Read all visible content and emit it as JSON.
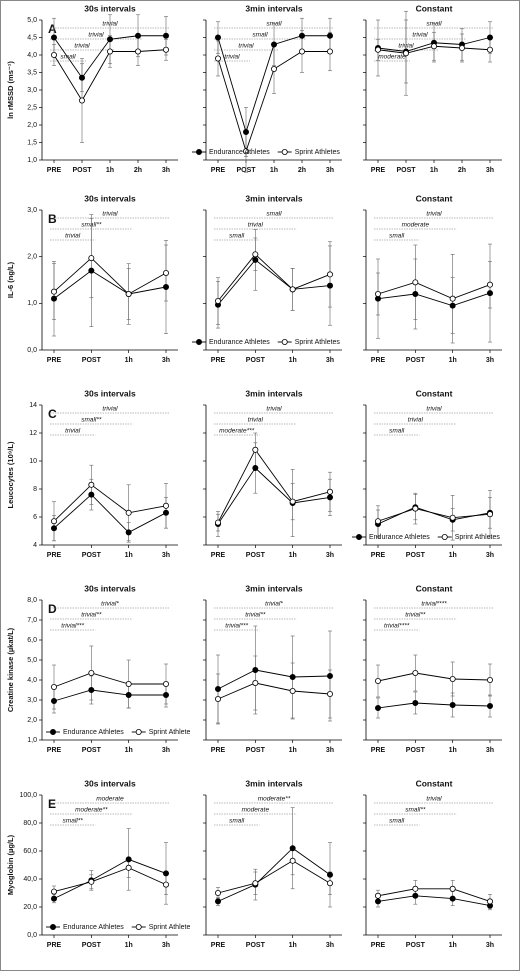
{
  "chart_data": [
    {
      "type": "line",
      "panel_label": "A",
      "ylabel": "ln rMSSD (ms⁻¹)",
      "titles": [
        "30s intervals",
        "3min intervals",
        "Constant"
      ],
      "categories": [
        "PRE",
        "POST",
        "1h",
        "2h",
        "3h"
      ],
      "ylim": [
        1,
        5
      ],
      "yticks": [
        {
          "value": 1,
          "label": "1,0"
        },
        {
          "value": 1.5,
          "label": "1,5"
        },
        {
          "value": 2,
          "label": "2,0"
        },
        {
          "value": 2.5,
          "label": "2,5"
        },
        {
          "value": 3,
          "label": "3,0"
        },
        {
          "value": 3.5,
          "label": "3,5"
        },
        {
          "value": 4,
          "label": "4,0"
        },
        {
          "value": 4.5,
          "label": "4,5"
        },
        {
          "value": 5,
          "label": "5,0"
        }
      ],
      "legend": {
        "panel": 1,
        "corner": "lower right"
      },
      "series": [
        {
          "name": "Endurance Athletes",
          "color": "#000000",
          "fill": "#000000",
          "values": [
            [
              4.5,
              3.35,
              4.45,
              4.55,
              4.55
            ],
            [
              4.5,
              1.8,
              4.3,
              4.55,
              4.55
            ],
            [
              4.2,
              4.1,
              4.35,
              4.3,
              4.5
            ]
          ],
          "errors": [
            [
              0.55,
              0.4,
              0.7,
              0.6,
              0.55
            ],
            [
              0.45,
              0.7,
              0.6,
              0.5,
              0.5
            ],
            [
              0.8,
              0.9,
              0.55,
              0.45,
              0.45
            ]
          ]
        },
        {
          "name": "Sprint Athletes",
          "color": "#000000",
          "fill": "#ffffff",
          "values": [
            [
              4.0,
              2.7,
              4.1,
              4.1,
              4.15
            ],
            [
              3.9,
              1.25,
              3.6,
              4.1,
              4.1
            ],
            [
              4.15,
              4.05,
              4.25,
              4.2,
              4.15
            ]
          ],
          "errors": [
            [
              0.3,
              1.2,
              0.45,
              0.4,
              0.3
            ],
            [
              0.5,
              0.6,
              0.7,
              0.6,
              0.55
            ],
            [
              0.3,
              1.2,
              0.4,
              0.4,
              0.35
            ]
          ]
        }
      ],
      "annotations": [
        [
          "trivial",
          "trivial",
          "trivial",
          "small"
        ],
        [
          "small",
          "small",
          "trivial",
          "trivial"
        ],
        [
          "small",
          "trivial",
          "trivial",
          "moderate"
        ]
      ]
    },
    {
      "type": "line",
      "panel_label": "B",
      "ylabel": "IL-6 (ng/L)",
      "titles": [
        "30s intervals",
        "3min intervals",
        "Constant"
      ],
      "categories": [
        "PRE",
        "POST",
        "1h",
        "3h"
      ],
      "ylim": [
        0,
        3
      ],
      "yticks": [
        {
          "value": 0,
          "label": "0,0"
        },
        {
          "value": 1,
          "label": "1,0"
        },
        {
          "value": 2,
          "label": "2,0"
        },
        {
          "value": 3,
          "label": "3,0"
        }
      ],
      "legend": {
        "panel": 1,
        "corner": "lower right"
      },
      "series": [
        {
          "name": "Endurance Athletes",
          "color": "#000000",
          "fill": "#000000",
          "values": [
            [
              1.1,
              1.7,
              1.2,
              1.35
            ],
            [
              0.97,
              1.93,
              1.3,
              1.38
            ],
            [
              1.1,
              1.2,
              0.95,
              1.22
            ]
          ],
          "errors": [
            [
              0.8,
              1.2,
              0.65,
              1.0
            ],
            [
              0.5,
              0.65,
              0.45,
              0.85
            ],
            [
              0.85,
              0.75,
              0.6,
              1.05
            ]
          ]
        },
        {
          "name": "Sprint Athletes",
          "color": "#000000",
          "fill": "#ffffff",
          "values": [
            [
              1.25,
              1.97,
              1.2,
              1.65
            ],
            [
              1.05,
              2.05,
              1.3,
              1.62
            ],
            [
              1.2,
              1.45,
              1.1,
              1.4
            ]
          ],
          "errors": [
            [
              0.6,
              0.85,
              0.55,
              0.6
            ],
            [
              0.5,
              0.35,
              0.45,
              0.7
            ],
            [
              0.45,
              0.8,
              0.95,
              0.5
            ]
          ]
        }
      ],
      "annotations": [
        [
          "trivial",
          "small**",
          "trivial"
        ],
        [
          "small",
          "trivial",
          "small"
        ],
        [
          "trivial",
          "moderate",
          "small"
        ]
      ]
    },
    {
      "type": "line",
      "panel_label": "C",
      "ylabel": "Leucocytes (10⁹/L)",
      "titles": [
        "30s intervals",
        "3min intervals",
        "Constant"
      ],
      "categories": [
        "PRE",
        "POST",
        "1h",
        "3h"
      ],
      "ylim": [
        4,
        14
      ],
      "yticks": [
        4,
        6,
        8,
        10,
        12,
        14
      ],
      "legend": {
        "panel": 2,
        "corner": "lower right"
      },
      "series": [
        {
          "name": "Endurance Athletes",
          "color": "#000000",
          "fill": "#000000",
          "values": [
            [
              5.2,
              7.6,
              4.9,
              6.3
            ],
            [
              5.5,
              9.5,
              7.0,
              7.4
            ],
            [
              5.5,
              6.7,
              5.8,
              6.3
            ]
          ],
          "errors": [
            [
              0.9,
              1.1,
              0.7,
              1.1
            ],
            [
              0.9,
              1.8,
              2.4,
              1.3
            ],
            [
              1.0,
              0.9,
              0.8,
              1.1
            ]
          ]
        },
        {
          "name": "Sprint Athletes",
          "color": "#000000",
          "fill": "#ffffff",
          "values": [
            [
              5.7,
              8.3,
              6.3,
              6.8
            ],
            [
              5.6,
              10.8,
              7.1,
              7.8
            ],
            [
              5.7,
              6.6,
              5.95,
              6.2
            ]
          ],
          "errors": [
            [
              1.4,
              1.4,
              2.0,
              1.6
            ],
            [
              0.6,
              1.2,
              1.3,
              1.4
            ],
            [
              1.1,
              1.1,
              1.6,
              1.7
            ]
          ]
        }
      ],
      "annotations": [
        [
          "trivial",
          "small**",
          "trivial"
        ],
        [
          "trivial",
          "trivial",
          "moderate***"
        ],
        [
          "trivial",
          "trivial",
          "small"
        ]
      ]
    },
    {
      "type": "line",
      "panel_label": "D",
      "ylabel": "Creatine kinase (µkat/L)",
      "titles": [
        "30s intervals",
        "3min intervals",
        "Constant"
      ],
      "categories": [
        "PRE",
        "POST",
        "1h",
        "3h"
      ],
      "ylim": [
        1,
        8
      ],
      "yticks": [
        {
          "value": 1,
          "label": "1,0"
        },
        {
          "value": 2,
          "label": "2,0"
        },
        {
          "value": 3,
          "label": "3,0"
        },
        {
          "value": 4,
          "label": "4,0"
        },
        {
          "value": 5,
          "label": "5,0"
        },
        {
          "value": 6,
          "label": "6,0"
        },
        {
          "value": 7,
          "label": "7,0"
        },
        {
          "value": 8,
          "label": "8,0"
        }
      ],
      "legend": {
        "panel": 0,
        "corner": "lower left"
      },
      "series": [
        {
          "name": "Endurance Athletes",
          "color": "#000000",
          "fill": "#000000",
          "values": [
            [
              2.95,
              3.5,
              3.25,
              3.25
            ],
            [
              3.55,
              4.5,
              4.15,
              4.2
            ],
            [
              2.6,
              2.85,
              2.75,
              2.7
            ]
          ],
          "errors": [
            [
              0.6,
              0.7,
              0.65,
              0.6
            ],
            [
              1.7,
              2.2,
              2.05,
              2.25
            ],
            [
              0.5,
              0.55,
              0.6,
              0.55
            ]
          ]
        },
        {
          "name": "Sprint Athlete",
          "color": "#000000",
          "fill": "#ffffff",
          "values": [
            [
              3.65,
              4.35,
              3.8,
              3.8
            ],
            [
              3.05,
              3.85,
              3.45,
              3.3
            ],
            [
              3.95,
              4.35,
              4.05,
              4.0
            ]
          ],
          "errors": [
            [
              1.1,
              1.35,
              1.2,
              1.0
            ],
            [
              1.25,
              1.35,
              1.4,
              1.2
            ],
            [
              0.8,
              0.9,
              0.85,
              0.8
            ]
          ]
        }
      ],
      "annotations": [
        [
          "trivial*",
          "trivial**",
          "trivial***"
        ],
        [
          "trivial*",
          "trivial**",
          "trivial***"
        ],
        [
          "trivial****",
          "trivial**",
          "trivial****"
        ]
      ]
    },
    {
      "type": "line",
      "panel_label": "E",
      "ylabel": "Myoglobin (µg/L)",
      "titles": [
        "30s intervals",
        "3min intervals",
        "Constant"
      ],
      "categories": [
        "PRE",
        "POST",
        "1h",
        "3h"
      ],
      "ylim": [
        0,
        100
      ],
      "yticks": [
        {
          "value": 0,
          "label": "0,0"
        },
        {
          "value": 20,
          "label": "20,0"
        },
        {
          "value": 40,
          "label": "40,0"
        },
        {
          "value": 60,
          "label": "60,0"
        },
        {
          "value": 80,
          "label": "80,0"
        },
        {
          "value": 100,
          "label": "100,0"
        }
      ],
      "legend": {
        "panel": 0,
        "corner": "lower left"
      },
      "series": [
        {
          "name": "Endurance Athletes",
          "color": "#000000",
          "fill": "#000000",
          "values": [
            [
              26,
              39,
              54,
              44
            ],
            [
              24,
              36,
              62,
              43
            ],
            [
              24,
              28,
              26,
              21
            ]
          ],
          "errors": [
            [
              3,
              7,
              22,
              22
            ],
            [
              3,
              11,
              29,
              23
            ],
            [
              4,
              6,
              5,
              3
            ]
          ]
        },
        {
          "name": "Sprint Athlete",
          "color": "#000000",
          "fill": "#ffffff",
          "values": [
            [
              31,
              38,
              48,
              36
            ],
            [
              30,
              37,
              53,
              37
            ],
            [
              28,
              33,
              33,
              24
            ]
          ],
          "errors": [
            [
              4,
              5,
              7,
              7
            ],
            [
              4,
              8,
              10,
              8
            ],
            [
              4,
              6,
              6,
              5
            ]
          ]
        }
      ],
      "annotations": [
        [
          "moderate",
          "moderate**",
          "small**"
        ],
        [
          "moderate**",
          "moderate",
          "small"
        ],
        [
          "trivial",
          "small**",
          "small"
        ]
      ]
    }
  ]
}
